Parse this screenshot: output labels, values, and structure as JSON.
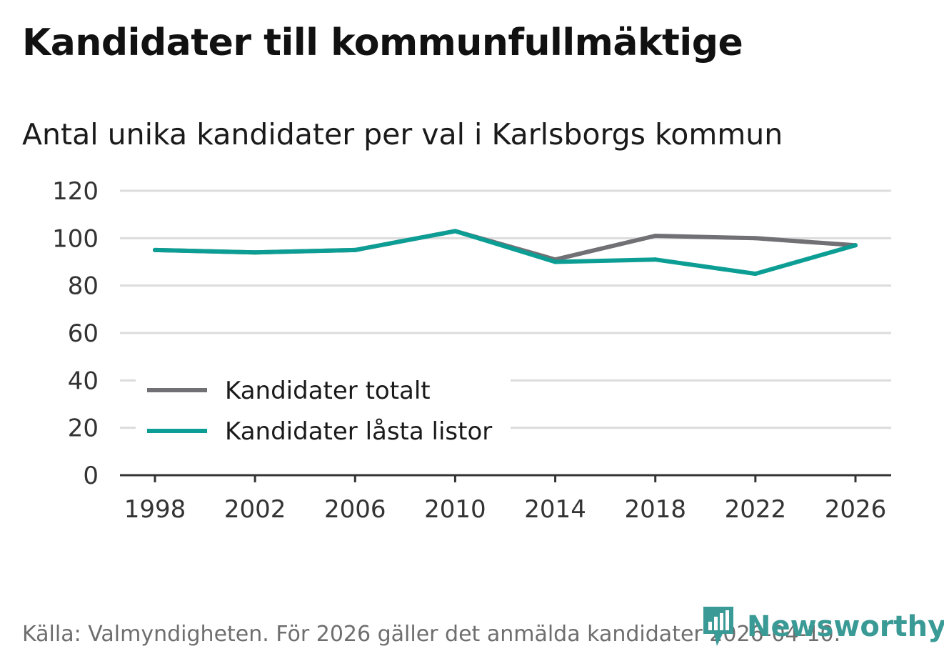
{
  "title": "Kandidater till kommunfullmäktige",
  "subtitle": "Antal unika kandidater per val i Karlsborgs kommun",
  "footer": "Källa: Valmyndigheten. För 2026 gäller det anmälda kandidater 2026-04-10.",
  "brand": {
    "name": "Newsworthy",
    "icon": "bar-chart-pin-icon",
    "color": "#3a9a95"
  },
  "chart_data": {
    "type": "line",
    "title": "Kandidater till kommunfullmäktige",
    "subtitle": "Antal unika kandidater per val i Karlsborgs kommun",
    "xlabel": "",
    "ylabel": "",
    "x": [
      1998,
      2002,
      2006,
      2010,
      2014,
      2018,
      2022,
      2026
    ],
    "ylim": [
      0,
      120
    ],
    "yticks": [
      0,
      20,
      40,
      60,
      80,
      100,
      120
    ],
    "grid": true,
    "legend": "bottom-left",
    "series": [
      {
        "name": "Kandidater totalt",
        "color": "#707075",
        "values": [
          95,
          94,
          95,
          103,
          91,
          101,
          100,
          97
        ]
      },
      {
        "name": "Kandidater låsta listor",
        "color": "#0c9e94",
        "values": [
          95,
          94,
          95,
          103,
          90,
          91,
          85,
          97
        ]
      }
    ]
  }
}
